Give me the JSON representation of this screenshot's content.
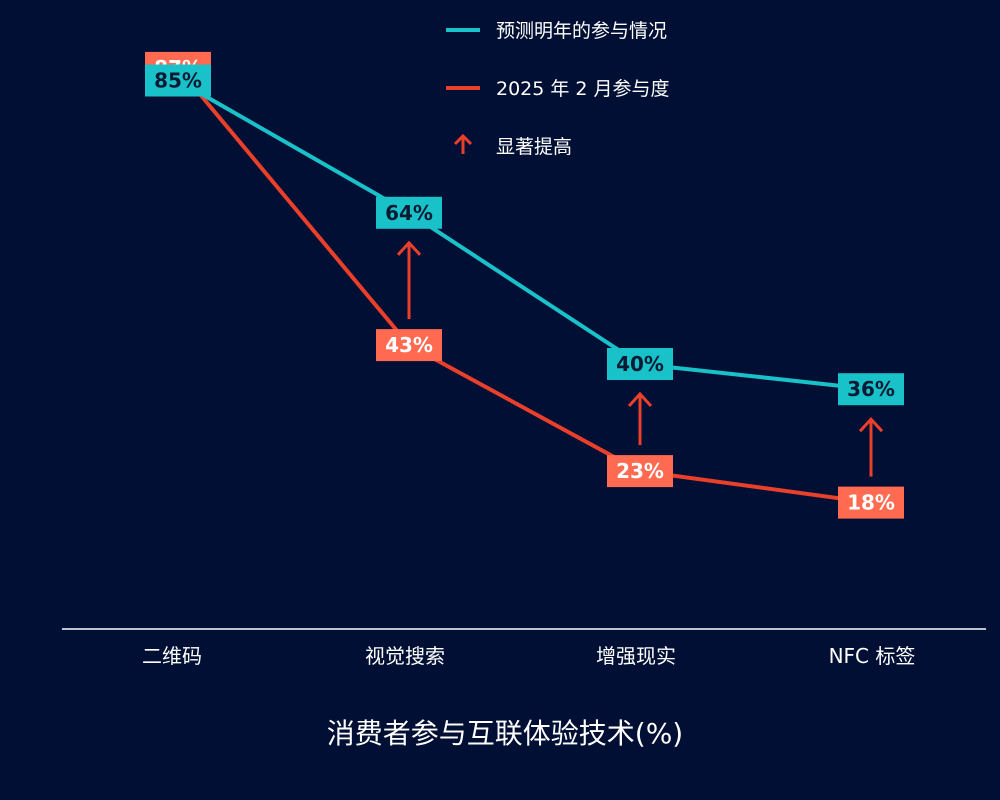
{
  "chart_data": {
    "type": "line",
    "title": "消费者参与互联体验技术(%)",
    "categories": [
      "二维码",
      "视觉搜索",
      "增强现实",
      "NFC 标签"
    ],
    "series": [
      {
        "name": "2025 年 2 月参与度",
        "values": [
          87,
          43,
          23,
          18
        ],
        "color": "#e8402a",
        "label_bg": "#ff6a50",
        "label_color": "#ffffff"
      },
      {
        "name": "预测明年的参与情况",
        "values": [
          85,
          64,
          40,
          36
        ],
        "color": "#19c2c9",
        "label_bg": "#19c2c9",
        "label_color": "#0a1a33"
      }
    ],
    "annotation_name": "显著提高",
    "annotation_color": "#e8402a",
    "increase_arrows": [
      1,
      2,
      3
    ],
    "value_suffix": "%",
    "ylim": [
      0,
      100
    ],
    "grid": false,
    "legend_position": "top-center"
  }
}
